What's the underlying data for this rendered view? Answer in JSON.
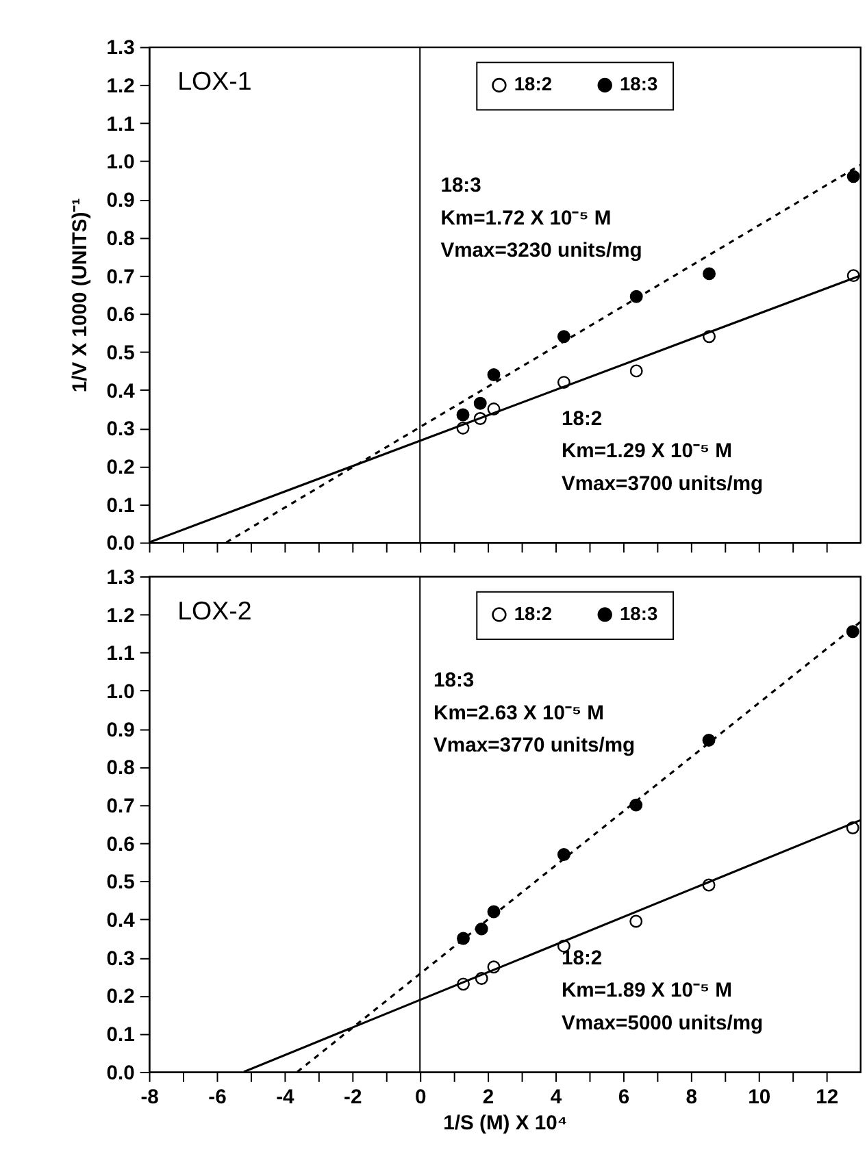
{
  "chart_data": [
    {
      "type": "scatter",
      "title": "LOX-1",
      "ylabel": "1/V X 1000 (UNITS)⁻¹",
      "xlim": [
        -8,
        13
      ],
      "ylim": [
        0,
        1.3
      ],
      "xticks": [
        -8,
        {
          "value": -7,
          "label": null
        },
        -6,
        {
          "value": -5,
          "label": null
        },
        -4,
        {
          "value": -3,
          "label": null
        },
        -2,
        {
          "value": -1,
          "label": null
        },
        0,
        {
          "value": 1,
          "label": null
        },
        2,
        {
          "value": 3,
          "label": null
        },
        4,
        {
          "value": 5,
          "label": null
        },
        6,
        {
          "value": 7,
          "label": null
        },
        8,
        {
          "value": 9,
          "label": null
        },
        10,
        {
          "value": 11,
          "label": null
        },
        12
      ],
      "yticks": [
        {
          "value": 0,
          "label": "0.0"
        },
        0.1,
        0.2,
        0.3,
        0.4,
        0.5,
        0.6,
        0.7,
        0.8,
        0.9,
        {
          "value": 1,
          "label": "1.0"
        },
        1.1,
        1.2,
        1.3
      ],
      "tick_labels": "y",
      "grid": false,
      "legend": "top",
      "series": [
        {
          "name": "18:2",
          "marker": "circle",
          "color": "#000000",
          "x": [
            1.27,
            1.78,
            2.18,
            4.25,
            6.39,
            8.54,
            12.8
          ],
          "values": [
            0.3,
            0.325,
            0.35,
            0.42,
            0.45,
            0.54,
            0.7
          ]
        },
        {
          "name": "18:3",
          "marker": "circle",
          "color": "#000000",
          "x": [
            1.27,
            1.78,
            2.18,
            4.25,
            6.39,
            8.54,
            12.8
          ],
          "values": [
            0.335,
            0.365,
            0.44,
            0.54,
            0.645,
            0.705,
            0.96
          ]
        },
        {
          "type": "line",
          "color": "#000000",
          "line_style": "solid",
          "x": [
            -8,
            13
          ],
          "values": [
            0,
            0.7
          ]
        },
        {
          "type": "line",
          "color": "#000000",
          "line_style": "dashed",
          "x": [
            -5.72,
            13
          ],
          "values": [
            0,
            0.99
          ]
        }
      ],
      "ref_lines": [
        {
          "axis": "x",
          "value": 0,
          "color": "#000000",
          "line_style": "solid"
        }
      ],
      "annotations": [
        "18:3\nKm=1.72 X 10⁻⁵ M\nVmax=3230 units/mg",
        "18:2\nKm=1.29 X 10⁻⁵ M\nVmax=3700 units/mg"
      ]
    },
    {
      "type": "scatter",
      "title": "LOX-2",
      "xlabel": "1/S (M) X 10⁴",
      "xlim": [
        -8,
        13
      ],
      "ylim": [
        0,
        1.3
      ],
      "xticks": [
        -8,
        {
          "value": -7,
          "label": null
        },
        -6,
        {
          "value": -5,
          "label": null
        },
        -4,
        {
          "value": -3,
          "label": null
        },
        -2,
        {
          "value": -1,
          "label": null
        },
        0,
        {
          "value": 1,
          "label": null
        },
        2,
        {
          "value": 3,
          "label": null
        },
        4,
        {
          "value": 5,
          "label": null
        },
        6,
        {
          "value": 7,
          "label": null
        },
        8,
        {
          "value": 9,
          "label": null
        },
        10,
        {
          "value": 11,
          "label": null
        },
        12
      ],
      "yticks": [
        {
          "value": 0,
          "label": "0.0"
        },
        0.1,
        0.2,
        0.3,
        0.4,
        0.5,
        0.6,
        0.7,
        0.8,
        0.9,
        {
          "value": 1,
          "label": "1.0"
        },
        1.1,
        1.2,
        1.3
      ],
      "grid": false,
      "legend": "top",
      "series": [
        {
          "name": "18:2",
          "marker": "circle",
          "color": "#000000",
          "x": [
            1.28,
            1.82,
            2.18,
            4.25,
            6.38,
            8.53,
            12.78
          ],
          "values": [
            0.23,
            0.245,
            0.275,
            0.33,
            0.395,
            0.49,
            0.64
          ]
        },
        {
          "name": "18:3",
          "marker": "circle",
          "color": "#000000",
          "x": [
            1.28,
            1.82,
            2.18,
            4.25,
            6.38,
            8.53,
            12.78
          ],
          "values": [
            0.35,
            0.375,
            0.42,
            0.57,
            0.7,
            0.87,
            1.155
          ]
        },
        {
          "type": "line",
          "color": "#000000",
          "line_style": "solid",
          "x": [
            -5.2,
            13
          ],
          "values": [
            0,
            0.66
          ]
        },
        {
          "type": "line",
          "color": "#000000",
          "line_style": "dashed",
          "x": [
            -3.62,
            13
          ],
          "values": [
            0,
            1.18
          ]
        }
      ],
      "ref_lines": [
        {
          "axis": "x",
          "value": 0,
          "color": "#000000",
          "line_style": "solid"
        }
      ],
      "annotations": [
        "18:3\nKm=2.63 X 10⁻⁵ M\nVmax=3770 units/mg",
        "18:2\nKm=1.89 X 10⁻⁵ M\nVmax=5000 units/mg"
      ]
    }
  ]
}
